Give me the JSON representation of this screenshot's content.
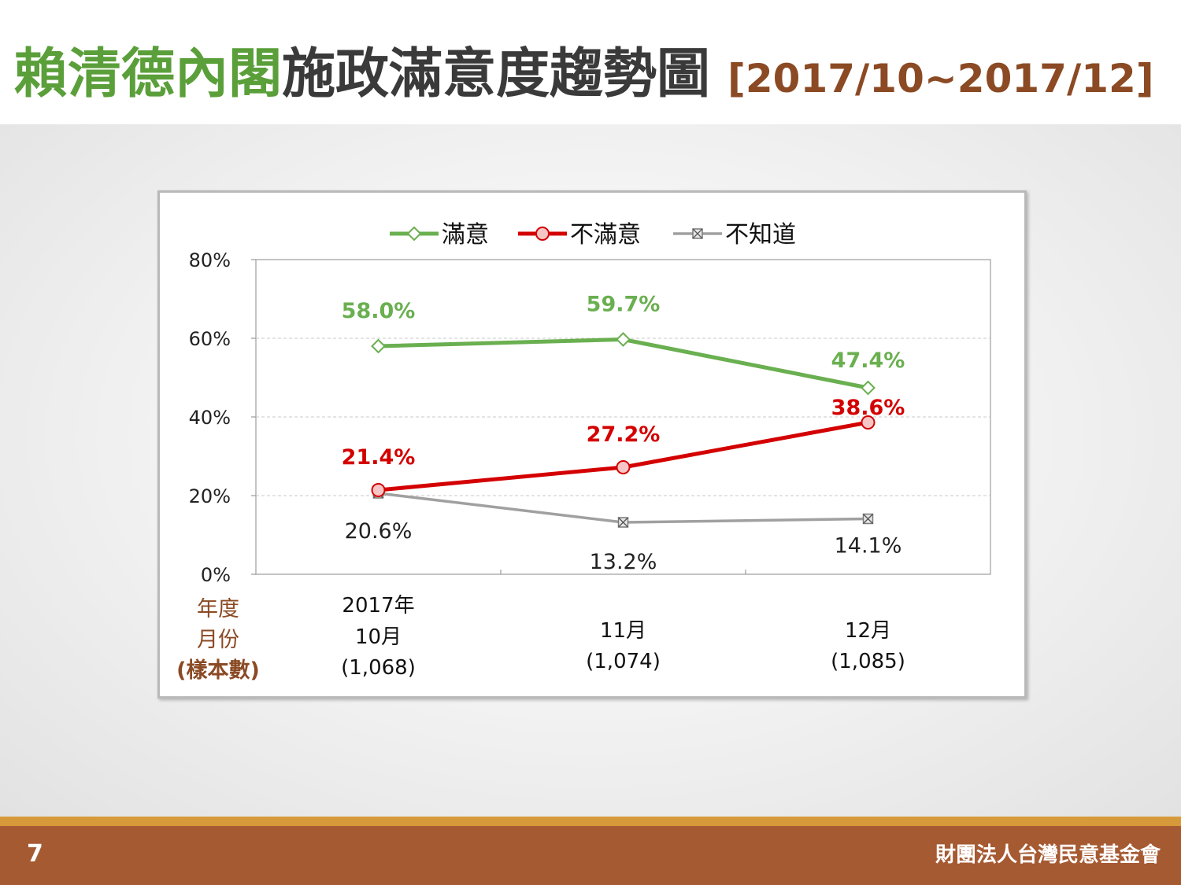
{
  "title": {
    "part1": "賴清德內閣",
    "part2": "施政滿意度趨勢圖",
    "date_range": "[2017/10~2017/12]"
  },
  "footer": {
    "page_number": "7",
    "organization": "財團法人台灣民意基金會"
  },
  "colors": {
    "satisfied": "#6aaf50",
    "dissatisfied": "#d40000",
    "unknown": "#a0a0a0",
    "title_green": "#5a9f3a",
    "title_date": "#8b4a24",
    "footer_bg": "#a65a32",
    "footer_line": "#d79a3a"
  },
  "chart_data": {
    "type": "line",
    "y_ticks": [
      "80%",
      "60%",
      "40%",
      "20%",
      "0%"
    ],
    "y_tick_values": [
      80,
      60,
      40,
      20,
      0
    ],
    "ylim": [
      0,
      80
    ],
    "grid": "horizontal-dashed",
    "legend_position": "top",
    "legend": [
      "滿意",
      "不滿意",
      "不知道"
    ],
    "x_axis_header": [
      "年度",
      "月份",
      "(樣本數)"
    ],
    "categories": [
      {
        "line1": "2017年",
        "line2": "10月",
        "line3": "(1,068)"
      },
      {
        "line1": "",
        "line2": "11月",
        "line3": "(1,074)"
      },
      {
        "line1": "",
        "line2": "12月",
        "line3": "(1,085)"
      }
    ],
    "series": [
      {
        "name": "滿意",
        "values": [
          58.0,
          59.7,
          47.4
        ],
        "labels": [
          "58.0%",
          "59.7%",
          "47.4%"
        ],
        "marker": "diamond"
      },
      {
        "name": "不滿意",
        "values": [
          21.4,
          27.2,
          38.6
        ],
        "labels": [
          "21.4%",
          "27.2%",
          "38.6%"
        ],
        "marker": "circle"
      },
      {
        "name": "不知道",
        "values": [
          20.6,
          13.2,
          14.1
        ],
        "labels": [
          "20.6%",
          "13.2%",
          "14.1%"
        ],
        "marker": "square-x"
      }
    ]
  }
}
